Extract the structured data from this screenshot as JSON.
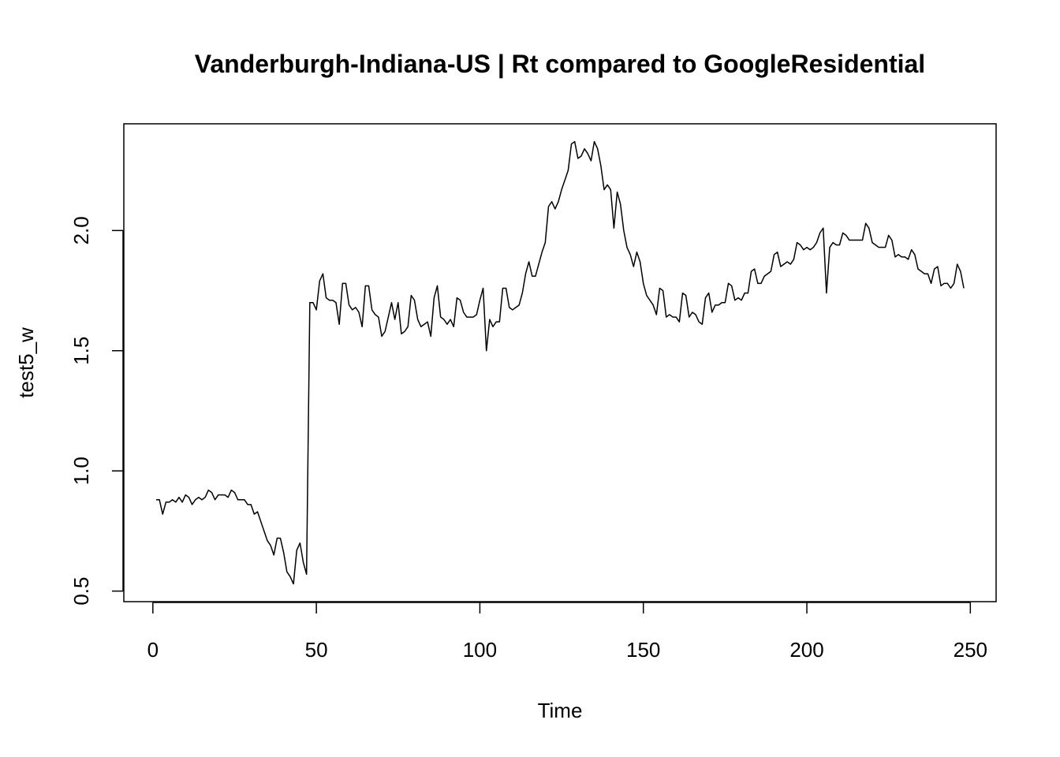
{
  "chart_data": {
    "type": "line",
    "title": "Vanderburgh-Indiana-US | Rt compared to GoogleResidential",
    "x_label": "Time",
    "y_label": "test5_w",
    "color": "#000000",
    "xlim": [
      -8.88,
      257.88
    ],
    "ylim": [
      0.456,
      2.444
    ],
    "xticks": [
      0,
      50,
      100,
      150,
      200,
      250
    ],
    "yticks": [
      0.5,
      {
        "value": 1,
        "label": "1.0"
      },
      1.5,
      {
        "value": 2,
        "label": "2.0"
      }
    ],
    "x": [
      1,
      2,
      3,
      4,
      5,
      6,
      7,
      8,
      9,
      10,
      11,
      12,
      13,
      14,
      15,
      16,
      17,
      18,
      19,
      20,
      21,
      22,
      23,
      24,
      25,
      26,
      27,
      28,
      29,
      30,
      31,
      32,
      33,
      34,
      35,
      36,
      37,
      38,
      39,
      40,
      41,
      42,
      43,
      44,
      45,
      46,
      47,
      48,
      49,
      50,
      51,
      52,
      53,
      54,
      55,
      56,
      57,
      58,
      59,
      60,
      61,
      62,
      63,
      64,
      65,
      66,
      67,
      68,
      69,
      70,
      71,
      72,
      73,
      74,
      75,
      76,
      77,
      78,
      79,
      80,
      81,
      82,
      83,
      84,
      85,
      86,
      87,
      88,
      89,
      90,
      91,
      92,
      93,
      94,
      95,
      96,
      97,
      98,
      99,
      100,
      101,
      102,
      103,
      104,
      105,
      106,
      107,
      108,
      109,
      110,
      111,
      112,
      113,
      114,
      115,
      116,
      117,
      118,
      119,
      120,
      121,
      122,
      123,
      124,
      125,
      126,
      127,
      128,
      129,
      130,
      131,
      132,
      133,
      134,
      135,
      136,
      137,
      138,
      139,
      140,
      141,
      142,
      143,
      144,
      145,
      146,
      147,
      148,
      149,
      150,
      151,
      152,
      153,
      154,
      155,
      156,
      157,
      158,
      159,
      160,
      161,
      162,
      163,
      164,
      165,
      166,
      167,
      168,
      169,
      170,
      171,
      172,
      173,
      174,
      175,
      176,
      177,
      178,
      179,
      180,
      181,
      182,
      183,
      184,
      185,
      186,
      187,
      188,
      189,
      190,
      191,
      192,
      193,
      194,
      195,
      196,
      197,
      198,
      199,
      200,
      201,
      202,
      203,
      204,
      205,
      206,
      207,
      208,
      209,
      210,
      211,
      212,
      213,
      214,
      215,
      216,
      217,
      218,
      219,
      220,
      221,
      222,
      223,
      224,
      225,
      226,
      227,
      228,
      229,
      230,
      231,
      232,
      233,
      234,
      235,
      236,
      237,
      238,
      239,
      240,
      241,
      242,
      243,
      244,
      245,
      246,
      247,
      248
    ],
    "values": [
      0.88,
      0.88,
      0.82,
      0.87,
      0.87,
      0.88,
      0.87,
      0.89,
      0.87,
      0.9,
      0.89,
      0.86,
      0.88,
      0.89,
      0.88,
      0.89,
      0.92,
      0.91,
      0.88,
      0.9,
      0.9,
      0.9,
      0.89,
      0.92,
      0.91,
      0.88,
      0.88,
      0.88,
      0.86,
      0.86,
      0.82,
      0.83,
      0.79,
      0.75,
      0.71,
      0.69,
      0.65,
      0.72,
      0.72,
      0.66,
      0.58,
      0.56,
      0.53,
      0.67,
      0.7,
      0.62,
      0.57,
      1.7,
      1.7,
      1.67,
      1.79,
      1.82,
      1.72,
      1.71,
      1.71,
      1.7,
      1.61,
      1.78,
      1.78,
      1.69,
      1.67,
      1.68,
      1.66,
      1.6,
      1.77,
      1.77,
      1.67,
      1.65,
      1.64,
      1.56,
      1.58,
      1.64,
      1.7,
      1.63,
      1.7,
      1.57,
      1.58,
      1.6,
      1.73,
      1.71,
      1.63,
      1.6,
      1.61,
      1.62,
      1.56,
      1.72,
      1.77,
      1.64,
      1.63,
      1.61,
      1.63,
      1.6,
      1.72,
      1.71,
      1.66,
      1.64,
      1.64,
      1.64,
      1.65,
      1.71,
      1.76,
      1.5,
      1.63,
      1.6,
      1.62,
      1.62,
      1.76,
      1.76,
      1.68,
      1.67,
      1.68,
      1.69,
      1.74,
      1.82,
      1.87,
      1.81,
      1.81,
      1.86,
      1.91,
      1.95,
      2.1,
      2.12,
      2.09,
      2.12,
      2.17,
      2.21,
      2.25,
      2.36,
      2.37,
      2.3,
      2.31,
      2.34,
      2.32,
      2.29,
      2.37,
      2.34,
      2.27,
      2.17,
      2.19,
      2.17,
      2.01,
      2.16,
      2.11,
      2.0,
      1.93,
      1.9,
      1.85,
      1.91,
      1.87,
      1.78,
      1.73,
      1.71,
      1.69,
      1.65,
      1.76,
      1.75,
      1.64,
      1.65,
      1.64,
      1.64,
      1.62,
      1.74,
      1.73,
      1.64,
      1.66,
      1.65,
      1.62,
      1.61,
      1.72,
      1.74,
      1.66,
      1.69,
      1.69,
      1.7,
      1.7,
      1.78,
      1.77,
      1.71,
      1.72,
      1.71,
      1.74,
      1.74,
      1.83,
      1.84,
      1.78,
      1.78,
      1.81,
      1.82,
      1.83,
      1.9,
      1.91,
      1.85,
      1.86,
      1.87,
      1.86,
      1.88,
      1.95,
      1.94,
      1.92,
      1.93,
      1.92,
      1.93,
      1.95,
      1.99,
      2.01,
      1.74,
      1.93,
      1.95,
      1.94,
      1.94,
      1.99,
      1.98,
      1.96,
      1.96,
      1.96,
      1.96,
      1.96,
      2.03,
      2.01,
      1.95,
      1.94,
      1.93,
      1.93,
      1.93,
      1.98,
      1.96,
      1.89,
      1.9,
      1.89,
      1.89,
      1.88,
      1.92,
      1.9,
      1.84,
      1.83,
      1.82,
      1.82,
      1.78,
      1.84,
      1.85,
      1.77,
      1.78,
      1.78,
      1.76,
      1.78,
      1.86,
      1.83,
      1.76
    ]
  }
}
